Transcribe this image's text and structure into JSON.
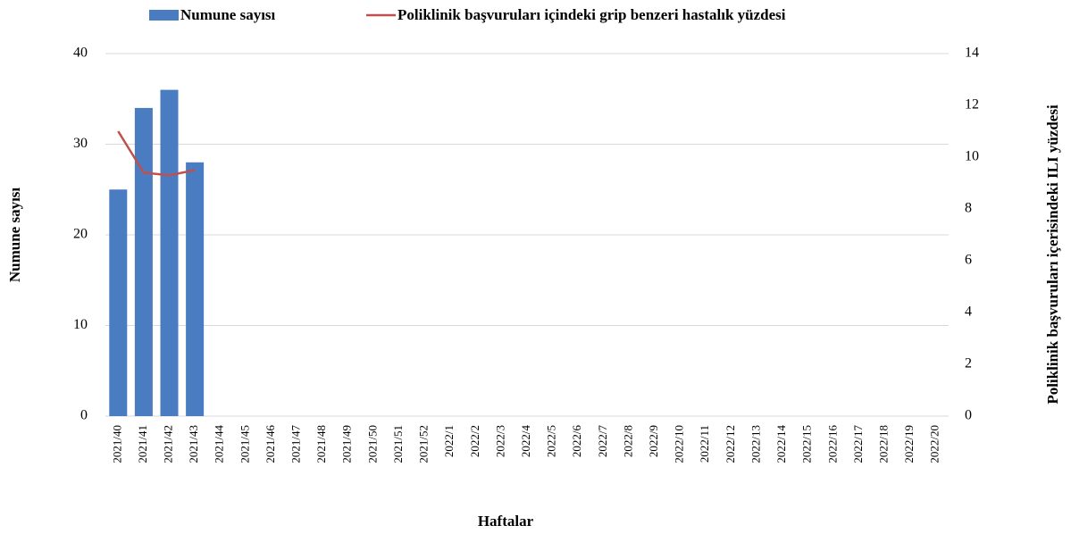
{
  "chart_data": {
    "type": "bar",
    "x_label": "Haftalar",
    "y_label": "Numune sayısı",
    "y2_label": "Poliklinik başvuruları içerisindeki ILI yüzdesi",
    "categories": [
      "2021/40",
      "2021/41",
      "2021/42",
      "2021/43",
      "2021/44",
      "2021/45",
      "2021/46",
      "2021/47",
      "2021/48",
      "2021/49",
      "2021/50",
      "2021/51",
      "2021/52",
      "2022/1",
      "2022/2",
      "2022/3",
      "2022/4",
      "2022/5",
      "2022/6",
      "2022/7",
      "2022/8",
      "2022/9",
      "2022/10",
      "2022/11",
      "2022/12",
      "2022/13",
      "2022/14",
      "2022/15",
      "2022/16",
      "2022/17",
      "2022/18",
      "2022/19",
      "2022/20"
    ],
    "series": [
      {
        "name": "Numune sayısı",
        "type": "bar",
        "color": "#4a7cc2",
        "values": [
          25,
          34,
          36,
          28,
          null,
          null,
          null,
          null,
          null,
          null,
          null,
          null,
          null,
          null,
          null,
          null,
          null,
          null,
          null,
          null,
          null,
          null,
          null,
          null,
          null,
          null,
          null,
          null,
          null,
          null,
          null,
          null,
          null
        ]
      },
      {
        "name": "Poliklinik başvuruları içindeki grip benzeri hastalık yüzdesi",
        "type": "line",
        "axis": "y2",
        "color": "#c0504d",
        "values": [
          11.0,
          9.4,
          9.3,
          9.5,
          null,
          null,
          null,
          null,
          null,
          null,
          null,
          null,
          null,
          null,
          null,
          null,
          null,
          null,
          null,
          null,
          null,
          null,
          null,
          null,
          null,
          null,
          null,
          null,
          null,
          null,
          null,
          null,
          null
        ]
      }
    ],
    "ylim": [
      0,
      40
    ],
    "yticks": [
      0,
      10,
      20,
      30,
      40
    ],
    "y2lim": [
      0,
      14
    ],
    "y2ticks": [
      0,
      2,
      4,
      6,
      8,
      10,
      12,
      14
    ],
    "grid": true
  }
}
